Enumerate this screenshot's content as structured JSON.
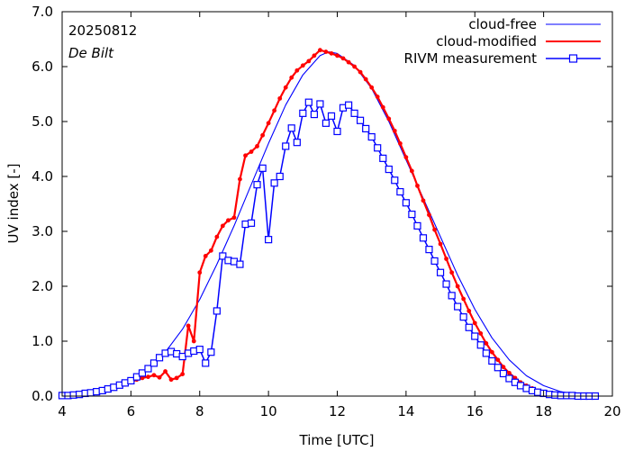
{
  "chart_data": {
    "type": "line",
    "title": "",
    "xlabel": "Time  [UTC]",
    "ylabel": "UV index  [-]",
    "xlim": [
      4,
      20
    ],
    "ylim": [
      0,
      7
    ],
    "xticks": [
      4,
      6,
      8,
      10,
      12,
      14,
      16,
      18,
      20
    ],
    "yticks": [
      0,
      1,
      2,
      3,
      4,
      5,
      6,
      7
    ],
    "xtick_labels": [
      "4",
      "6",
      "8",
      "10",
      "12",
      "14",
      "16",
      "18",
      "20"
    ],
    "ytick_labels": [
      "0.0",
      "1.0",
      "2.0",
      "3.0",
      "4.0",
      "5.0",
      "6.0",
      "7.0"
    ],
    "grid": false,
    "annotations": {
      "date": "20250812",
      "location": "De Bilt"
    },
    "legend": {
      "placement": "top-right",
      "entries": [
        "cloud-free",
        "cloud-modified",
        "RIVM measurement"
      ]
    },
    "colors": {
      "cloud_free": "#0000ff",
      "cloud_modified": "#ff0000",
      "measurement": "#0000ff",
      "marker_fill": "#ffffff"
    },
    "series": [
      {
        "name": "cloud-free",
        "style": "line",
        "x": [
          4.0,
          4.5,
          5.0,
          5.5,
          6.0,
          6.5,
          7.0,
          7.5,
          8.0,
          8.5,
          9.0,
          9.5,
          10.0,
          10.5,
          11.0,
          11.5,
          11.75,
          12.0,
          12.5,
          13.0,
          13.5,
          14.0,
          14.5,
          15.0,
          15.5,
          16.0,
          16.5,
          17.0,
          17.5,
          18.0,
          18.5,
          19.0,
          19.5
        ],
        "y": [
          0.01,
          0.04,
          0.09,
          0.17,
          0.3,
          0.5,
          0.8,
          1.22,
          1.76,
          2.4,
          3.1,
          3.85,
          4.6,
          5.3,
          5.85,
          6.2,
          6.27,
          6.24,
          6.02,
          5.6,
          5.0,
          4.3,
          3.6,
          2.9,
          2.2,
          1.58,
          1.06,
          0.66,
          0.37,
          0.19,
          0.08,
          0.03,
          0.01
        ]
      },
      {
        "name": "cloud-modified",
        "style": "line-markers",
        "x": [
          4.0,
          4.17,
          4.33,
          4.5,
          4.67,
          4.83,
          5.0,
          5.17,
          5.33,
          5.5,
          5.67,
          5.83,
          6.0,
          6.17,
          6.33,
          6.5,
          6.67,
          6.83,
          7.0,
          7.17,
          7.33,
          7.5,
          7.67,
          7.83,
          8.0,
          8.17,
          8.33,
          8.5,
          8.67,
          8.83,
          9.0,
          9.17,
          9.33,
          9.5,
          9.67,
          9.83,
          10.0,
          10.17,
          10.33,
          10.5,
          10.67,
          10.83,
          11.0,
          11.17,
          11.33,
          11.5,
          11.67,
          11.83,
          12.0,
          12.17,
          12.33,
          12.5,
          12.67,
          12.83,
          13.0,
          13.17,
          13.33,
          13.5,
          13.67,
          13.83,
          14.0,
          14.17,
          14.33,
          14.5,
          14.67,
          14.83,
          15.0,
          15.17,
          15.33,
          15.5,
          15.67,
          15.83,
          16.0,
          16.17,
          16.33,
          16.5,
          16.67,
          16.83,
          17.0,
          17.17,
          17.33,
          17.5,
          17.67,
          17.83,
          18.0,
          18.17,
          18.33,
          18.5,
          18.67,
          18.83,
          19.0,
          19.17,
          19.33,
          19.5
        ],
        "y": [
          0.01,
          0.02,
          0.03,
          0.04,
          0.05,
          0.07,
          0.08,
          0.1,
          0.12,
          0.15,
          0.18,
          0.21,
          0.25,
          0.3,
          0.33,
          0.35,
          0.38,
          0.34,
          0.45,
          0.3,
          0.33,
          0.4,
          1.28,
          1.0,
          2.25,
          2.55,
          2.65,
          2.9,
          3.1,
          3.2,
          3.25,
          3.95,
          4.38,
          4.45,
          4.55,
          4.75,
          4.97,
          5.2,
          5.42,
          5.62,
          5.8,
          5.93,
          6.02,
          6.1,
          6.2,
          6.3,
          6.27,
          6.24,
          6.2,
          6.15,
          6.08,
          6.0,
          5.9,
          5.77,
          5.62,
          5.45,
          5.26,
          5.05,
          4.83,
          4.6,
          4.35,
          4.1,
          3.83,
          3.56,
          3.3,
          3.03,
          2.77,
          2.5,
          2.25,
          2.0,
          1.77,
          1.55,
          1.33,
          1.14,
          0.96,
          0.8,
          0.66,
          0.53,
          0.42,
          0.33,
          0.25,
          0.19,
          0.14,
          0.1,
          0.07,
          0.05,
          0.03,
          0.02,
          0.01,
          0.01,
          0.0,
          0.0,
          0.0,
          0.0
        ]
      },
      {
        "name": "RIVM measurement",
        "style": "line-markers",
        "x": [
          4.0,
          4.17,
          4.33,
          4.5,
          4.67,
          4.83,
          5.0,
          5.17,
          5.33,
          5.5,
          5.67,
          5.83,
          6.0,
          6.17,
          6.33,
          6.5,
          6.67,
          6.83,
          7.0,
          7.17,
          7.33,
          7.5,
          7.67,
          7.83,
          8.0,
          8.17,
          8.33,
          8.5,
          8.67,
          8.83,
          9.0,
          9.17,
          9.33,
          9.5,
          9.67,
          9.83,
          10.0,
          10.17,
          10.33,
          10.5,
          10.67,
          10.83,
          11.0,
          11.17,
          11.33,
          11.5,
          11.67,
          11.83,
          12.0,
          12.17,
          12.33,
          12.5,
          12.67,
          12.83,
          13.0,
          13.17,
          13.33,
          13.5,
          13.67,
          13.83,
          14.0,
          14.17,
          14.33,
          14.5,
          14.67,
          14.83,
          15.0,
          15.17,
          15.33,
          15.5,
          15.67,
          15.83,
          16.0,
          16.17,
          16.33,
          16.5,
          16.67,
          16.83,
          17.0,
          17.17,
          17.33,
          17.5,
          17.67,
          17.83,
          18.0,
          18.17,
          18.33,
          18.5,
          18.67,
          18.83,
          19.0,
          19.17,
          19.33,
          19.5
        ],
        "y": [
          0.01,
          0.01,
          0.02,
          0.03,
          0.05,
          0.06,
          0.08,
          0.1,
          0.13,
          0.16,
          0.2,
          0.24,
          0.28,
          0.35,
          0.42,
          0.5,
          0.6,
          0.7,
          0.78,
          0.81,
          0.77,
          0.72,
          0.78,
          0.82,
          0.85,
          0.6,
          0.8,
          1.55,
          2.55,
          2.47,
          2.45,
          2.4,
          3.13,
          3.15,
          3.85,
          4.15,
          2.85,
          3.88,
          4.0,
          4.55,
          4.88,
          4.62,
          5.15,
          5.35,
          5.13,
          5.32,
          4.97,
          5.1,
          4.82,
          5.25,
          5.3,
          5.15,
          5.02,
          4.87,
          4.72,
          4.52,
          4.33,
          4.13,
          3.93,
          3.72,
          3.52,
          3.31,
          3.1,
          2.88,
          2.67,
          2.46,
          2.25,
          2.04,
          1.83,
          1.63,
          1.44,
          1.25,
          1.09,
          0.93,
          0.78,
          0.64,
          0.52,
          0.41,
          0.32,
          0.25,
          0.19,
          0.14,
          0.1,
          0.07,
          0.05,
          0.03,
          0.02,
          0.01,
          0.01,
          0.01,
          0.0,
          0.0,
          0.0,
          0.0
        ]
      }
    ]
  }
}
